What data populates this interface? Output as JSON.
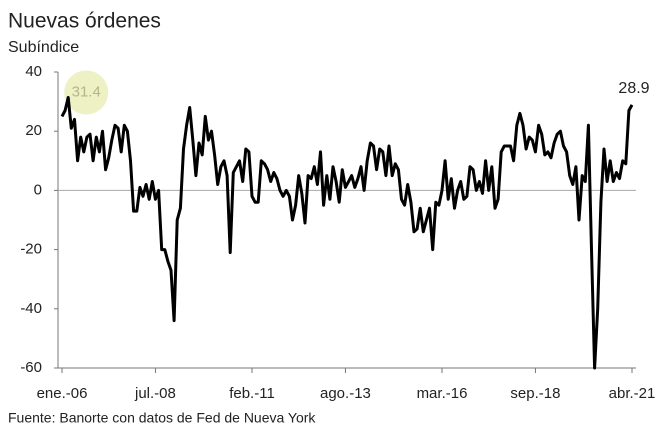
{
  "chart_data": {
    "type": "line",
    "title": "Nuevas órdenes",
    "subtitle": "Subíndice",
    "source": "Fuente: Banorte con datos de Fed de Nueva York",
    "categories": [
      "ene.-06",
      null,
      null,
      null,
      null,
      null,
      null,
      null,
      null,
      null,
      null,
      null,
      null,
      null,
      null,
      null,
      null,
      null,
      null,
      null,
      null,
      null,
      null,
      null,
      null,
      null,
      null,
      null,
      null,
      null,
      "jul.-08",
      null,
      null,
      null,
      null,
      null,
      null,
      null,
      null,
      null,
      null,
      null,
      null,
      null,
      null,
      null,
      null,
      null,
      null,
      null,
      null,
      null,
      null,
      null,
      null,
      null,
      null,
      null,
      null,
      null,
      null,
      "feb.-11",
      null,
      null,
      null,
      null,
      null,
      null,
      null,
      null,
      null,
      null,
      null,
      null,
      null,
      null,
      null,
      null,
      null,
      null,
      null,
      null,
      null,
      null,
      null,
      null,
      null,
      null,
      null,
      null,
      null,
      "ago.-13",
      null,
      null,
      null,
      null,
      null,
      null,
      null,
      null,
      null,
      null,
      null,
      null,
      null,
      null,
      null,
      null,
      null,
      null,
      null,
      null,
      null,
      null,
      null,
      null,
      null,
      null,
      null,
      null,
      null,
      null,
      "mar.-16",
      null,
      null,
      null,
      null,
      null,
      null,
      null,
      null,
      null,
      null,
      null,
      null,
      null,
      null,
      null,
      null,
      null,
      null,
      null,
      null,
      null,
      null,
      null,
      null,
      null,
      null,
      null,
      null,
      null,
      "sep.-18",
      null,
      null,
      null,
      null,
      null,
      null,
      null,
      null,
      null,
      null,
      null,
      null,
      null,
      null,
      null,
      null,
      null,
      null,
      null,
      null,
      null,
      null,
      null,
      null,
      null,
      null,
      null,
      null,
      null,
      null,
      "abr.-21"
    ],
    "series": [
      {
        "name": "Nuevas órdenes",
        "color": "#000000",
        "values": [
          25,
          27,
          31.4,
          21,
          24,
          10,
          18,
          13,
          18,
          19,
          10,
          18,
          13,
          20,
          7,
          11,
          17,
          22,
          21,
          13,
          22,
          20,
          10,
          -7,
          -7,
          1,
          -2,
          2,
          -3,
          3,
          -3,
          0,
          -20,
          -20,
          -24,
          -27,
          -44,
          -10,
          -6,
          14,
          22,
          28,
          17,
          5,
          16,
          12,
          25,
          17,
          20,
          12,
          2,
          8,
          10,
          5,
          -21,
          6,
          8,
          10,
          3,
          14,
          13,
          -2,
          -4,
          -4,
          10,
          9,
          7,
          3,
          6,
          4,
          0,
          -2,
          0,
          -2,
          -10,
          -5,
          5,
          -1,
          -11,
          5,
          4,
          8,
          2,
          13,
          -5,
          5,
          -3,
          8,
          3,
          -4,
          7,
          1,
          3,
          5,
          1,
          4,
          8,
          0,
          10,
          16,
          15,
          7,
          14,
          13,
          5,
          15,
          5,
          9,
          7,
          -3,
          -5,
          2,
          -4,
          -14,
          -13,
          -6,
          -14,
          -10,
          -6,
          -20,
          -4,
          -5,
          0,
          10,
          -3,
          4,
          -6,
          0,
          3,
          -3,
          -2,
          8,
          7,
          0,
          3,
          -1,
          10,
          0,
          8,
          -6,
          -3,
          13,
          15,
          15,
          15,
          10,
          22,
          26,
          22,
          14,
          18,
          17,
          13,
          22,
          19,
          12,
          13,
          11,
          16,
          19,
          20,
          15,
          13,
          5,
          2,
          8,
          -10,
          5,
          3,
          22,
          -20,
          -60,
          -40,
          -4,
          14,
          3,
          10,
          3,
          6,
          4,
          10,
          9,
          27,
          28.9
        ]
      }
    ],
    "ylim": [
      -60,
      40
    ],
    "yticks": [
      -60,
      -40,
      -20,
      0,
      20,
      40
    ]
  }
}
